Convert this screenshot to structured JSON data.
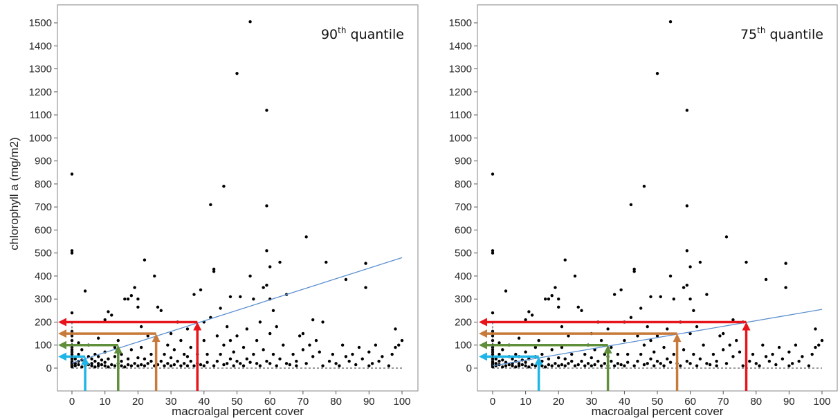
{
  "ylabel": "chlorophyll a (mg/m2)",
  "xlabel": "macroalgal percent cover",
  "colors": {
    "red": "#e8141c",
    "brown": "#c87a3a",
    "green": "#5f8f3a",
    "cyan": "#1fb5e6",
    "fit": "#5b8fcf",
    "point": "#000000"
  },
  "points": [
    [
      0,
      843
    ],
    [
      0,
      510
    ],
    [
      0,
      500
    ],
    [
      0,
      240
    ],
    [
      0,
      160
    ],
    [
      0,
      140
    ],
    [
      0,
      120
    ],
    [
      0,
      100
    ],
    [
      0,
      90
    ],
    [
      0,
      80
    ],
    [
      0,
      70
    ],
    [
      0,
      60
    ],
    [
      0,
      50
    ],
    [
      0,
      40
    ],
    [
      0,
      30
    ],
    [
      0,
      25
    ],
    [
      0,
      20
    ],
    [
      0,
      15
    ],
    [
      0,
      10
    ],
    [
      0,
      5
    ],
    [
      1,
      10
    ],
    [
      1,
      20
    ],
    [
      1,
      40
    ],
    [
      2,
      15
    ],
    [
      2,
      30
    ],
    [
      2,
      60
    ],
    [
      2,
      110
    ],
    [
      3,
      5
    ],
    [
      3,
      35
    ],
    [
      3,
      80
    ],
    [
      4,
      10
    ],
    [
      4,
      25
    ],
    [
      4,
      335
    ],
    [
      5,
      15
    ],
    [
      5,
      50
    ],
    [
      5,
      100
    ],
    [
      6,
      10
    ],
    [
      6,
      20
    ],
    [
      6,
      40
    ],
    [
      7,
      5
    ],
    [
      7,
      30
    ],
    [
      7,
      60
    ],
    [
      8,
      10
    ],
    [
      8,
      20
    ],
    [
      8,
      50
    ],
    [
      8,
      130
    ],
    [
      9,
      15
    ],
    [
      9,
      35
    ],
    [
      10,
      10
    ],
    [
      10,
      25
    ],
    [
      10,
      70
    ],
    [
      10,
      210
    ],
    [
      11,
      5
    ],
    [
      11,
      40
    ],
    [
      11,
      245
    ],
    [
      12,
      15
    ],
    [
      12,
      230
    ],
    [
      13,
      10
    ],
    [
      13,
      50
    ],
    [
      13,
      90
    ],
    [
      14,
      20
    ],
    [
      14,
      120
    ],
    [
      15,
      10
    ],
    [
      15,
      30
    ],
    [
      15,
      60
    ],
    [
      16,
      5
    ],
    [
      16,
      300
    ],
    [
      17,
      15
    ],
    [
      17,
      40
    ],
    [
      17,
      300
    ],
    [
      18,
      10
    ],
    [
      18,
      80
    ],
    [
      18,
      315
    ],
    [
      19,
      20
    ],
    [
      19,
      350
    ],
    [
      20,
      10
    ],
    [
      20,
      45
    ],
    [
      20,
      300
    ],
    [
      20,
      265
    ],
    [
      21,
      15
    ],
    [
      21,
      90
    ],
    [
      21,
      180
    ],
    [
      22,
      470
    ],
    [
      22,
      40
    ],
    [
      22,
      10
    ],
    [
      23,
      20
    ],
    [
      23,
      140
    ],
    [
      24,
      30
    ],
    [
      24,
      60
    ],
    [
      25,
      10
    ],
    [
      25,
      400
    ],
    [
      26,
      15
    ],
    [
      26,
      265
    ],
    [
      27,
      30
    ],
    [
      27,
      250
    ],
    [
      28,
      10
    ],
    [
      28,
      60
    ],
    [
      29,
      20
    ],
    [
      29,
      100
    ],
    [
      30,
      10
    ],
    [
      30,
      45
    ],
    [
      30,
      150
    ],
    [
      31,
      15
    ],
    [
      31,
      80
    ],
    [
      32,
      30
    ],
    [
      32,
      200
    ],
    [
      33,
      10
    ],
    [
      33,
      120
    ],
    [
      34,
      20
    ],
    [
      34,
      60
    ],
    [
      35,
      10
    ],
    [
      35,
      50
    ],
    [
      35,
      170
    ],
    [
      36,
      30
    ],
    [
      36,
      90
    ],
    [
      37,
      10
    ],
    [
      37,
      320
    ],
    [
      38,
      20
    ],
    [
      38,
      60
    ],
    [
      39,
      15
    ],
    [
      39,
      340
    ],
    [
      40,
      10
    ],
    [
      40,
      120
    ],
    [
      40,
      200
    ],
    [
      41,
      25
    ],
    [
      41,
      60
    ],
    [
      42,
      710
    ],
    [
      42,
      220
    ],
    [
      43,
      10
    ],
    [
      43,
      420
    ],
    [
      43,
      430
    ],
    [
      44,
      30
    ],
    [
      44,
      140
    ],
    [
      45,
      60
    ],
    [
      45,
      260
    ],
    [
      46,
      15
    ],
    [
      46,
      790
    ],
    [
      46,
      100
    ],
    [
      47,
      20
    ],
    [
      47,
      180
    ],
    [
      48,
      40
    ],
    [
      48,
      120
    ],
    [
      48,
      310
    ],
    [
      49,
      10
    ],
    [
      49,
      70
    ],
    [
      50,
      1280
    ],
    [
      50,
      30
    ],
    [
      50,
      140
    ],
    [
      51,
      20
    ],
    [
      51,
      310
    ],
    [
      52,
      10
    ],
    [
      52,
      90
    ],
    [
      53,
      40
    ],
    [
      53,
      170
    ],
    [
      54,
      1505
    ],
    [
      54,
      25
    ],
    [
      54,
      400
    ],
    [
      55,
      60
    ],
    [
      55,
      300
    ],
    [
      56,
      20
    ],
    [
      56,
      120
    ],
    [
      57,
      10
    ],
    [
      57,
      200
    ],
    [
      58,
      350
    ],
    [
      58,
      80
    ],
    [
      59,
      1120
    ],
    [
      59,
      705
    ],
    [
      59,
      360
    ],
    [
      59,
      510
    ],
    [
      59,
      30
    ],
    [
      60,
      300
    ],
    [
      60,
      150
    ],
    [
      60,
      440
    ],
    [
      60,
      20
    ],
    [
      61,
      250
    ],
    [
      61,
      60
    ],
    [
      62,
      10
    ],
    [
      62,
      180
    ],
    [
      63,
      460
    ],
    [
      63,
      40
    ],
    [
      64,
      100
    ],
    [
      65,
      20
    ],
    [
      65,
      320
    ],
    [
      66,
      15
    ],
    [
      67,
      60
    ],
    [
      68,
      10
    ],
    [
      68,
      30
    ],
    [
      69,
      140
    ],
    [
      70,
      150
    ],
    [
      70,
      80
    ],
    [
      71,
      570
    ],
    [
      71,
      20
    ],
    [
      72,
      100
    ],
    [
      73,
      210
    ],
    [
      73,
      50
    ],
    [
      74,
      120
    ],
    [
      75,
      70
    ],
    [
      76,
      200
    ],
    [
      76,
      10
    ],
    [
      77,
      460
    ],
    [
      78,
      30
    ],
    [
      79,
      60
    ],
    [
      80,
      20
    ],
    [
      81,
      10
    ],
    [
      82,
      100
    ],
    [
      83,
      50
    ],
    [
      83,
      385
    ],
    [
      84,
      30
    ],
    [
      85,
      60
    ],
    [
      86,
      15
    ],
    [
      87,
      90
    ],
    [
      88,
      40
    ],
    [
      89,
      455
    ],
    [
      89,
      350
    ],
    [
      90,
      10
    ],
    [
      90,
      70
    ],
    [
      91,
      20
    ],
    [
      92,
      100
    ],
    [
      93,
      30
    ],
    [
      94,
      50
    ],
    [
      96,
      10
    ],
    [
      97,
      60
    ],
    [
      98,
      170
    ],
    [
      98,
      90
    ],
    [
      99,
      100
    ],
    [
      100,
      120
    ]
  ],
  "chart_data": [
    {
      "type": "scatter",
      "annotation_text": "90",
      "annotation_sup": "th",
      "annotation_rest": " quantile",
      "xlabel": "macroalgal percent cover",
      "ylabel": "chlorophyll a (mg/m2)",
      "xlim": [
        0,
        100
      ],
      "ylim": [
        0,
        1500
      ],
      "xticks": [
        0,
        10,
        20,
        30,
        40,
        50,
        60,
        70,
        80,
        90,
        100
      ],
      "yticks": [
        0,
        100,
        200,
        300,
        400,
        500,
        600,
        700,
        800,
        900,
        1000,
        1100,
        1200,
        1300,
        1400,
        1500
      ],
      "fit_line": {
        "x": [
          0,
          100
        ],
        "y": [
          22,
          480
        ]
      },
      "thresholds": [
        {
          "y": 200,
          "x": 38,
          "color": "red"
        },
        {
          "y": 150,
          "x": 25.5,
          "color": "brown"
        },
        {
          "y": 100,
          "x": 14,
          "color": "green"
        },
        {
          "y": 50,
          "x": 4,
          "color": "cyan"
        }
      ]
    },
    {
      "type": "scatter",
      "annotation_text": "75",
      "annotation_sup": "th",
      "annotation_rest": " quantile",
      "xlabel": "macroalgal percent cover",
      "ylabel": "",
      "xlim": [
        0,
        100
      ],
      "ylim": [
        0,
        1500
      ],
      "xticks": [
        0,
        10,
        20,
        30,
        40,
        50,
        60,
        70,
        80,
        90,
        100
      ],
      "yticks": [
        0,
        100,
        200,
        300,
        400,
        500,
        600,
        700,
        800,
        900,
        1000,
        1100,
        1200,
        1300,
        1400,
        1500
      ],
      "fit_line": {
        "x": [
          0,
          100
        ],
        "y": [
          10,
          255
        ]
      },
      "thresholds": [
        {
          "y": 200,
          "x": 77,
          "color": "red"
        },
        {
          "y": 150,
          "x": 56,
          "color": "brown"
        },
        {
          "y": 100,
          "x": 35,
          "color": "green"
        },
        {
          "y": 50,
          "x": 14,
          "color": "cyan"
        }
      ]
    }
  ]
}
